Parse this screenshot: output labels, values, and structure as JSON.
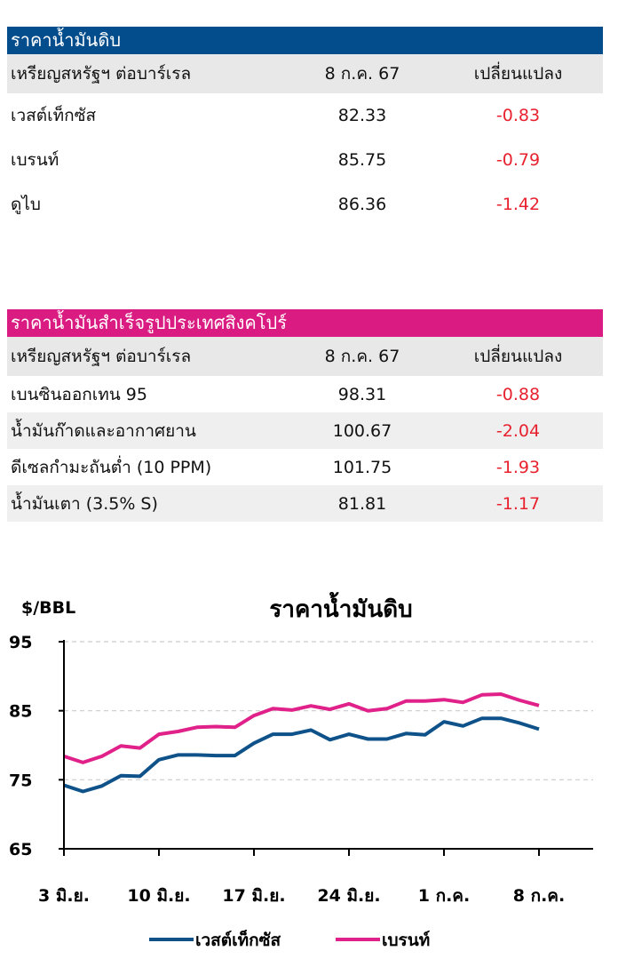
{
  "crude_table": {
    "title": "ราคาน้ำมันดิบ",
    "header": {
      "unit": "เหรียญสหรัฐฯ ต่อบาร์เรล",
      "date": "8 ก.ค. 67",
      "change": "เปลี่ยนแปลง"
    },
    "rows": [
      {
        "name": "เวสต์เท็กซัส",
        "price": "82.33",
        "change": "-0.83"
      },
      {
        "name": "เบรนท์",
        "price": "85.75",
        "change": "-0.79"
      },
      {
        "name": "ดูไบ",
        "price": "86.36",
        "change": "-1.42"
      }
    ]
  },
  "singapore_table": {
    "title": "ราคาน้ำมันสำเร็จรูปประเทศสิงคโปร์",
    "header": {
      "unit": "เหรียญสหรัฐฯ ต่อบาร์เรล",
      "date": "8 ก.ค. 67",
      "change": "เปลี่ยนแปลง"
    },
    "rows": [
      {
        "name": "เบนซินออกเทน 95",
        "price": "98.31",
        "change": "-0.88"
      },
      {
        "name": "น้ำมันก๊าดและอากาศยาน",
        "price": "100.67",
        "change": "-2.04"
      },
      {
        "name": "ดีเซลกำมะถันต่ำ (10 PPM)",
        "price": "101.75",
        "change": "-1.93"
      },
      {
        "name": "น้ำมันเตา (3.5% S)",
        "price": "81.81",
        "change": "-1.17"
      }
    ]
  },
  "colors": {
    "crude_header": "#034d8c",
    "singapore_header": "#d91b82",
    "negative": "#e8212e",
    "wti": "#0e5289",
    "brent": "#e0218a"
  },
  "chart_data": {
    "type": "line",
    "title": "ราคาน้ำมันดิบ",
    "ylabel": "$/BBL",
    "ylim": [
      65,
      95
    ],
    "yticks": [
      95,
      85,
      75,
      65
    ],
    "xticks": [
      "3 มิ.ย.",
      "10 มิ.ย.",
      "17 มิ.ย.",
      "24 มิ.ย.",
      "1 ก.ค.",
      "8 ก.ค."
    ],
    "grid": true,
    "legend": "bottom",
    "x": [
      "3 มิ.ย.",
      "4 มิ.ย.",
      "5 มิ.ย.",
      "6 มิ.ย.",
      "7 มิ.ย.",
      "10 มิ.ย.",
      "11 มิ.ย.",
      "12 มิ.ย.",
      "13 มิ.ย.",
      "14 มิ.ย.",
      "17 มิ.ย.",
      "18 มิ.ย.",
      "19 มิ.ย.",
      "20 มิ.ย.",
      "21 มิ.ย.",
      "24 มิ.ย.",
      "25 มิ.ย.",
      "26 มิ.ย.",
      "27 มิ.ย.",
      "28 มิ.ย.",
      "1 ก.ค.",
      "2 ก.ค.",
      "3 ก.ค.",
      "4 ก.ค.",
      "5 ก.ค.",
      "8 ก.ค."
    ],
    "series": [
      {
        "name": "เวสต์เท็กซัส",
        "values": [
          74.2,
          73.3,
          74.1,
          75.6,
          75.5,
          77.9,
          78.6,
          78.6,
          78.5,
          78.5,
          80.3,
          81.6,
          81.6,
          82.2,
          80.8,
          81.6,
          80.9,
          80.9,
          81.7,
          81.5,
          83.4,
          82.8,
          83.9,
          83.9,
          83.2,
          82.33
        ]
      },
      {
        "name": "เบรนท์",
        "values": [
          78.4,
          77.5,
          78.4,
          79.9,
          79.6,
          81.6,
          82.0,
          82.6,
          82.7,
          82.6,
          84.3,
          85.3,
          85.1,
          85.7,
          85.2,
          86.0,
          85.0,
          85.3,
          86.4,
          86.4,
          86.6,
          86.2,
          87.3,
          87.4,
          86.5,
          85.75
        ]
      }
    ]
  }
}
